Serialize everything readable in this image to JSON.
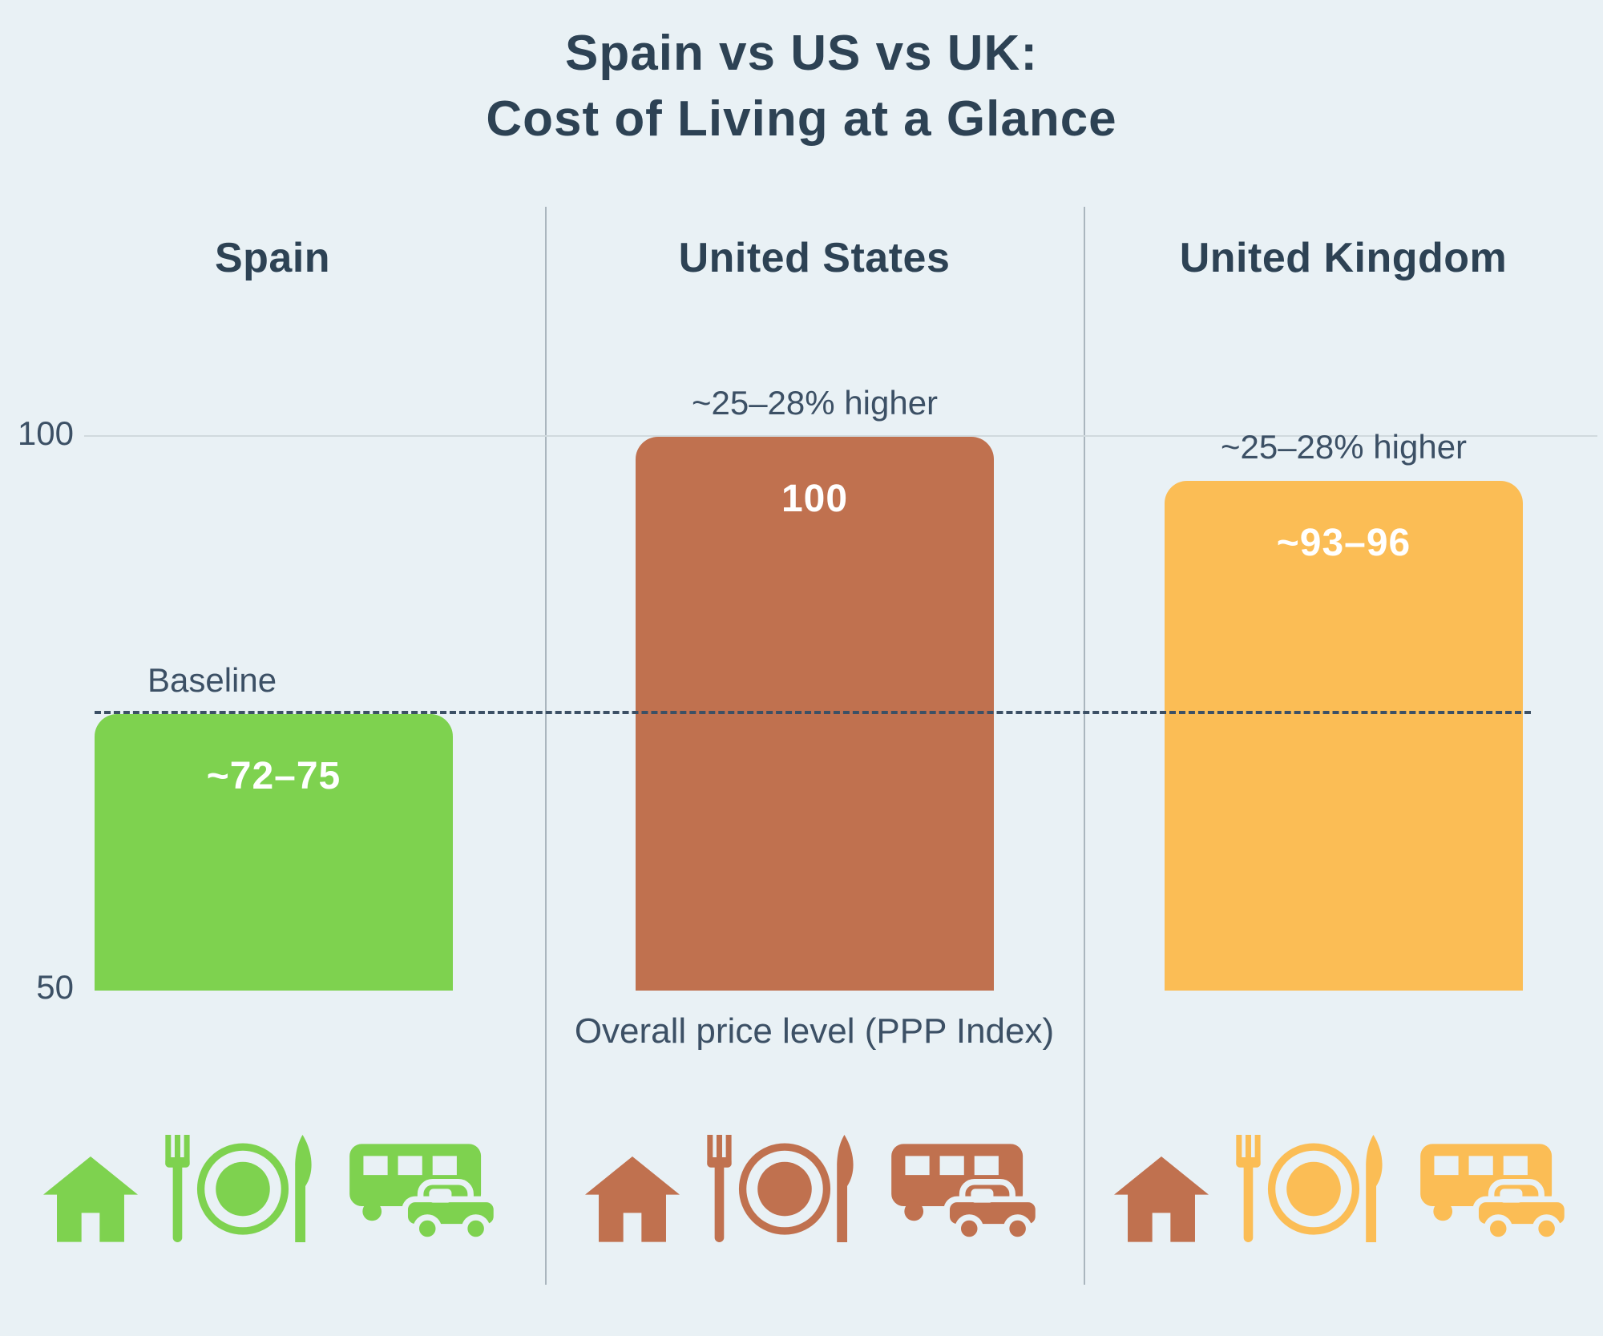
{
  "title": {
    "line1": "Spain vs US vs UK:",
    "line2": "Cost of Living at a Glance"
  },
  "columns": [
    {
      "header": "Spain",
      "value_label": "~72–75",
      "annotation": "Baseline"
    },
    {
      "header": "United States",
      "value_label": "100",
      "annotation": "~25–28% higher"
    },
    {
      "header": "United Kingdom",
      "value_label": "~93–96",
      "annotation": "~25–28% higher"
    }
  ],
  "axis": {
    "tick_top": "100",
    "tick_bottom": "50",
    "xlabel": "Overall price level (PPP Index)"
  },
  "chart_data": {
    "type": "bar",
    "title": "Spain vs US vs UK: Cost of Living at a Glance",
    "categories": [
      "Spain",
      "United States",
      "United Kingdom"
    ],
    "values": [
      75,
      100,
      96
    ],
    "value_labels": [
      "~72–75",
      "100",
      "~93–96"
    ],
    "value_ranges": [
      [
        72,
        75
      ],
      [
        100,
        100
      ],
      [
        93,
        96
      ]
    ],
    "annotations": [
      "Baseline",
      "~25–28% higher",
      "~25–28% higher"
    ],
    "xlabel": "Overall price level (PPP Index)",
    "ylabel": "",
    "ylim": [
      50,
      100
    ],
    "yticks": [
      50,
      100
    ],
    "baseline_value": 75,
    "bar_colors": [
      "#7ed24f",
      "#c0714f",
      "#fbbd55"
    ],
    "grid": "light horizontal gridline at 100; dark dashed baseline at 75",
    "legend_position": "none"
  },
  "icons": [
    {
      "country": "Spain",
      "house": "#7ed24f",
      "dining": "#7ed24f",
      "transport": "#7ed24f"
    },
    {
      "country": "United States",
      "house": "#c0714f",
      "dining": "#c0714f",
      "transport": "#c0714f"
    },
    {
      "country": "United Kingdom",
      "house": "#c0714f",
      "dining": "#fbbd55",
      "transport": "#fbbd55"
    }
  ],
  "colors": {
    "background": "#e9f1f5",
    "title_text": "#2d4254",
    "axis_text": "#3c5065",
    "bar_value_text": "#ffffff",
    "spain_green": "#7ed24f",
    "us_terracotta": "#c0714f",
    "uk_orange": "#fbbd55",
    "divider": "#aab6be",
    "gridline": "#d0dade",
    "baseline_dash": "#3c5065"
  }
}
